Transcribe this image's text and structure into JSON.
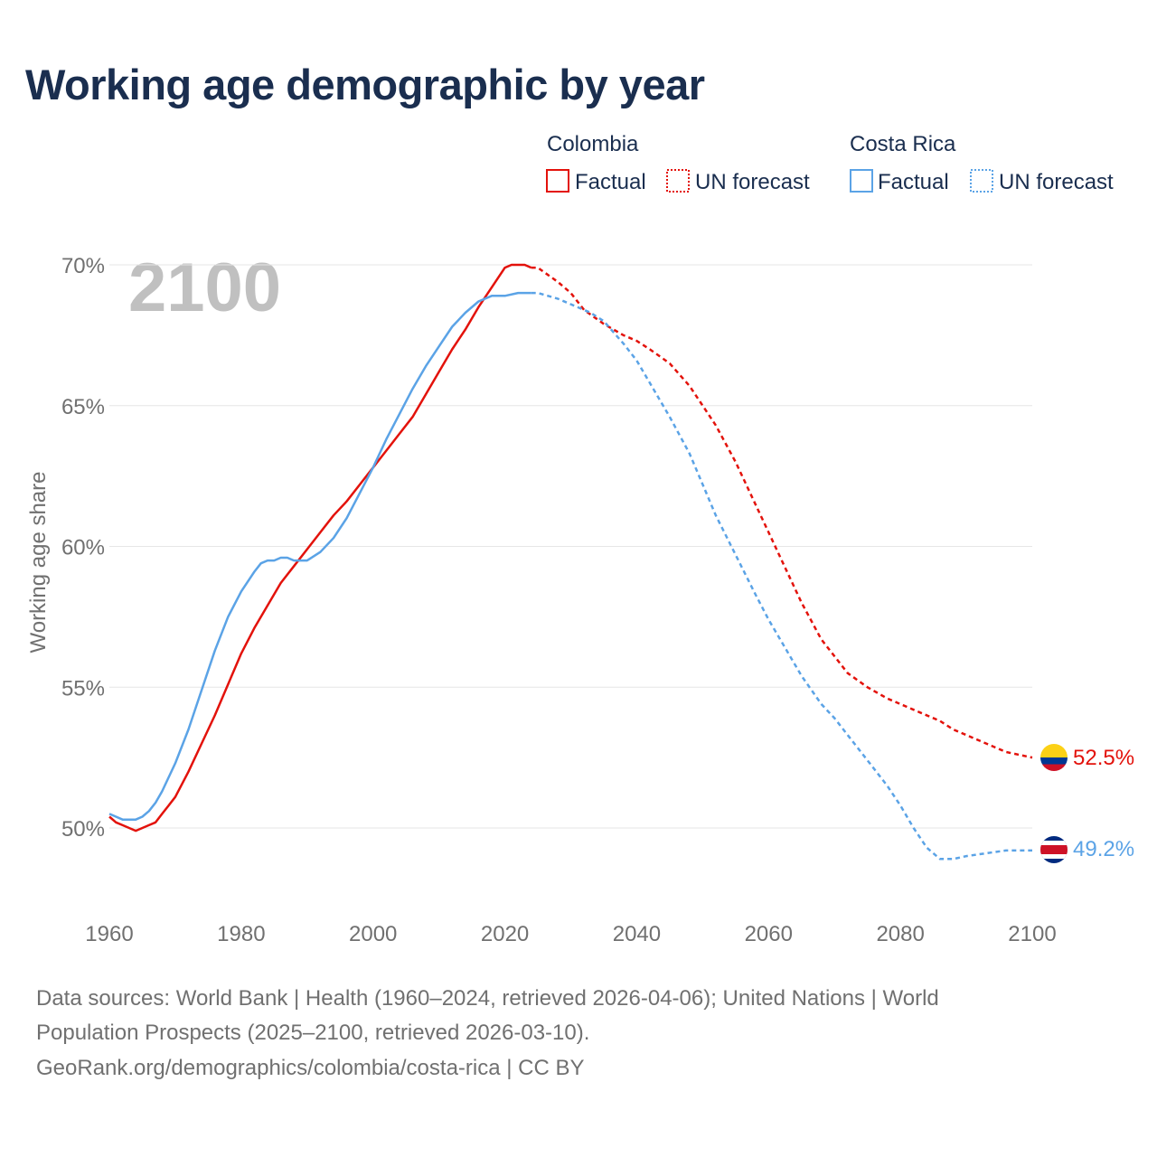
{
  "title": "Working age demographic by year",
  "year_watermark": "2100",
  "legend": {
    "groups": [
      {
        "country": "Colombia",
        "factual_label": "Factual",
        "forecast_label": "UN forecast",
        "color": "#e3120b"
      },
      {
        "country": "Costa Rica",
        "factual_label": "Factual",
        "forecast_label": "UN forecast",
        "color": "#5ba3e6"
      }
    ]
  },
  "footer": {
    "line1": "Data sources: World Bank | Health (1960–2024, retrieved 2026-04-06); United Nations | World",
    "line2": "Population Prospects (2025–2100, retrieved 2026-03-10).",
    "line3": "GeoRank.org/demographics/colombia/costa-rica | CC BY"
  },
  "chart_data": {
    "type": "line",
    "title": "Working age demographic by year",
    "xlabel": "",
    "ylabel": "Working age share",
    "xlim": [
      1960,
      2100
    ],
    "ylim": [
      47,
      72
    ],
    "x_ticks": [
      1960,
      1980,
      2000,
      2020,
      2040,
      2060,
      2080,
      2100
    ],
    "x_tick_labels": [
      "1960",
      "1980",
      "2000",
      "2020",
      "2040",
      "2060",
      "2080",
      "2100"
    ],
    "y_ticks": [
      50,
      55,
      60,
      65,
      70
    ],
    "y_tick_labels": [
      "50%",
      "55%",
      "60%",
      "65%",
      "70%"
    ],
    "grid": true,
    "forecast_start": 2024,
    "series": [
      {
        "name": "Colombia",
        "color": "#e3120b",
        "end_label": "52.5%",
        "points": [
          [
            1960,
            50.4
          ],
          [
            1961,
            50.2
          ],
          [
            1962,
            50.1
          ],
          [
            1963,
            50.0
          ],
          [
            1964,
            49.9
          ],
          [
            1965,
            50.0
          ],
          [
            1966,
            50.1
          ],
          [
            1967,
            50.2
          ],
          [
            1968,
            50.5
          ],
          [
            1969,
            50.8
          ],
          [
            1970,
            51.1
          ],
          [
            1972,
            52.0
          ],
          [
            1974,
            53.0
          ],
          [
            1976,
            54.0
          ],
          [
            1978,
            55.1
          ],
          [
            1980,
            56.2
          ],
          [
            1982,
            57.1
          ],
          [
            1984,
            57.9
          ],
          [
            1986,
            58.7
          ],
          [
            1988,
            59.3
          ],
          [
            1990,
            59.9
          ],
          [
            1992,
            60.5
          ],
          [
            1994,
            61.1
          ],
          [
            1996,
            61.6
          ],
          [
            1998,
            62.2
          ],
          [
            2000,
            62.8
          ],
          [
            2002,
            63.4
          ],
          [
            2004,
            64.0
          ],
          [
            2006,
            64.6
          ],
          [
            2008,
            65.4
          ],
          [
            2010,
            66.2
          ],
          [
            2012,
            67.0
          ],
          [
            2014,
            67.7
          ],
          [
            2016,
            68.5
          ],
          [
            2018,
            69.2
          ],
          [
            2020,
            69.9
          ],
          [
            2021,
            70.0
          ],
          [
            2022,
            70.0
          ],
          [
            2023,
            70.0
          ],
          [
            2024,
            69.9
          ],
          [
            2025,
            69.9
          ],
          [
            2028,
            69.4
          ],
          [
            2030,
            69.0
          ],
          [
            2032,
            68.4
          ],
          [
            2035,
            67.9
          ],
          [
            2038,
            67.5
          ],
          [
            2040,
            67.3
          ],
          [
            2042,
            67.0
          ],
          [
            2045,
            66.5
          ],
          [
            2048,
            65.7
          ],
          [
            2050,
            65.0
          ],
          [
            2052,
            64.3
          ],
          [
            2055,
            63.0
          ],
          [
            2058,
            61.5
          ],
          [
            2060,
            60.5
          ],
          [
            2062,
            59.5
          ],
          [
            2065,
            58.0
          ],
          [
            2068,
            56.7
          ],
          [
            2070,
            56.1
          ],
          [
            2072,
            55.5
          ],
          [
            2075,
            55.0
          ],
          [
            2078,
            54.6
          ],
          [
            2080,
            54.4
          ],
          [
            2083,
            54.1
          ],
          [
            2086,
            53.8
          ],
          [
            2088,
            53.5
          ],
          [
            2090,
            53.3
          ],
          [
            2093,
            53.0
          ],
          [
            2096,
            52.7
          ],
          [
            2098,
            52.6
          ],
          [
            2100,
            52.5
          ]
        ]
      },
      {
        "name": "Costa Rica",
        "color": "#5ba3e6",
        "end_label": "49.2%",
        "points": [
          [
            1960,
            50.5
          ],
          [
            1961,
            50.4
          ],
          [
            1962,
            50.3
          ],
          [
            1963,
            50.3
          ],
          [
            1964,
            50.3
          ],
          [
            1965,
            50.4
          ],
          [
            1966,
            50.6
          ],
          [
            1967,
            50.9
          ],
          [
            1968,
            51.3
          ],
          [
            1970,
            52.3
          ],
          [
            1972,
            53.5
          ],
          [
            1974,
            54.9
          ],
          [
            1976,
            56.3
          ],
          [
            1978,
            57.5
          ],
          [
            1980,
            58.4
          ],
          [
            1982,
            59.1
          ],
          [
            1983,
            59.4
          ],
          [
            1984,
            59.5
          ],
          [
            1985,
            59.5
          ],
          [
            1986,
            59.6
          ],
          [
            1987,
            59.6
          ],
          [
            1988,
            59.5
          ],
          [
            1989,
            59.5
          ],
          [
            1990,
            59.5
          ],
          [
            1992,
            59.8
          ],
          [
            1994,
            60.3
          ],
          [
            1996,
            61.0
          ],
          [
            1998,
            61.9
          ],
          [
            2000,
            62.8
          ],
          [
            2002,
            63.8
          ],
          [
            2004,
            64.7
          ],
          [
            2006,
            65.6
          ],
          [
            2008,
            66.4
          ],
          [
            2010,
            67.1
          ],
          [
            2012,
            67.8
          ],
          [
            2014,
            68.3
          ],
          [
            2016,
            68.7
          ],
          [
            2018,
            68.9
          ],
          [
            2020,
            68.9
          ],
          [
            2022,
            69.0
          ],
          [
            2024,
            69.0
          ],
          [
            2025,
            69.0
          ],
          [
            2028,
            68.8
          ],
          [
            2030,
            68.6
          ],
          [
            2033,
            68.3
          ],
          [
            2035,
            68.0
          ],
          [
            2038,
            67.2
          ],
          [
            2040,
            66.6
          ],
          [
            2042,
            65.8
          ],
          [
            2045,
            64.6
          ],
          [
            2048,
            63.3
          ],
          [
            2050,
            62.2
          ],
          [
            2052,
            61.1
          ],
          [
            2055,
            59.7
          ],
          [
            2058,
            58.3
          ],
          [
            2060,
            57.4
          ],
          [
            2062,
            56.6
          ],
          [
            2065,
            55.4
          ],
          [
            2068,
            54.4
          ],
          [
            2070,
            53.9
          ],
          [
            2072,
            53.3
          ],
          [
            2075,
            52.4
          ],
          [
            2078,
            51.5
          ],
          [
            2080,
            50.8
          ],
          [
            2082,
            50.0
          ],
          [
            2084,
            49.3
          ],
          [
            2086,
            48.9
          ],
          [
            2088,
            48.9
          ],
          [
            2090,
            49.0
          ],
          [
            2093,
            49.1
          ],
          [
            2096,
            49.2
          ],
          [
            2098,
            49.2
          ],
          [
            2100,
            49.2
          ]
        ]
      }
    ]
  }
}
